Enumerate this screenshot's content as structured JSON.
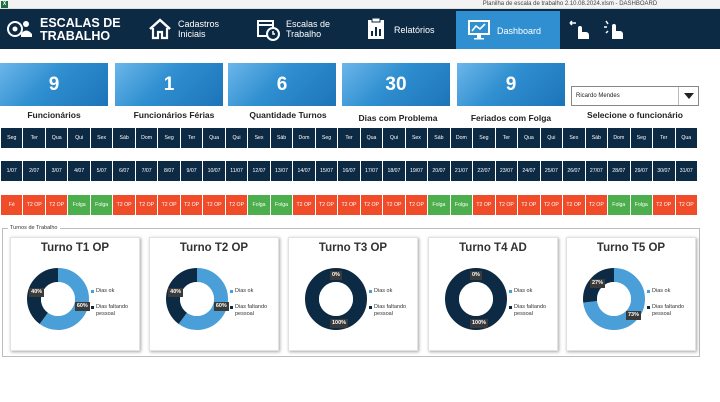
{
  "window": {
    "title": "Planilha de escala de trabalho 2.10.08.2024.xlsm - DASHBOARD",
    "app_icon": "X"
  },
  "nav": {
    "logo_line1": "ESCALAS DE",
    "logo_line2": "TRABALHO",
    "cadastros_line1": "Cadastros",
    "cadastros_line2": "Iniciais",
    "escalas_line1": "Escalas de",
    "escalas_line2": "Trabalho",
    "relatorios": "Relatórios",
    "dashboard": "Dashboard"
  },
  "kpis": [
    {
      "value": "9",
      "label": "Funcionários"
    },
    {
      "value": "1",
      "label": "Funcionários Férias"
    },
    {
      "value": "6",
      "label": "Quantidade Turnos"
    },
    {
      "value": "30",
      "label": "Dias com Problema"
    },
    {
      "value": "9",
      "label": "Feriados com Folga"
    }
  ],
  "employee_select": {
    "value": "Ricardo Mendes",
    "label": "Selecione o funcionário"
  },
  "calendar": {
    "days": [
      "Seg",
      "Ter",
      "Qua",
      "Qui",
      "Sex",
      "Sáb",
      "Dom",
      "Seg",
      "Ter",
      "Qua",
      "Qui",
      "Sex",
      "Sáb",
      "Dom",
      "Seg",
      "Ter",
      "Qua",
      "Qui",
      "Sex",
      "Sáb",
      "Dom",
      "Seg",
      "Ter",
      "Qua",
      "Qui",
      "Sex",
      "Sáb",
      "Dom",
      "Seg",
      "Ter",
      "Qua"
    ],
    "dates": [
      "1/07",
      "2/07",
      "3/07",
      "4/07",
      "5/07",
      "6/07",
      "7/07",
      "8/07",
      "9/07",
      "10/07",
      "11/07",
      "12/07",
      "13/07",
      "14/07",
      "15/07",
      "16/07",
      "17/07",
      "18/07",
      "19/07",
      "20/07",
      "21/07",
      "22/07",
      "23/07",
      "24/07",
      "25/07",
      "26/07",
      "27/07",
      "28/07",
      "29/07",
      "30/07",
      "31/07"
    ],
    "shifts": [
      {
        "text": "Fé",
        "c": "red"
      },
      {
        "text": "T2 OP",
        "c": "red"
      },
      {
        "text": "T2 OP",
        "c": "red"
      },
      {
        "text": "Folga",
        "c": "green"
      },
      {
        "text": "Folga",
        "c": "green"
      },
      {
        "text": "T2 OP",
        "c": "red"
      },
      {
        "text": "T2 OP",
        "c": "red"
      },
      {
        "text": "T2 OP",
        "c": "red"
      },
      {
        "text": "T2 OP",
        "c": "red"
      },
      {
        "text": "T2 OP",
        "c": "red"
      },
      {
        "text": "T2 OP",
        "c": "red"
      },
      {
        "text": "Folga",
        "c": "green"
      },
      {
        "text": "Folga",
        "c": "green"
      },
      {
        "text": "T2 OP",
        "c": "red"
      },
      {
        "text": "T2 OP",
        "c": "red"
      },
      {
        "text": "T2 OP",
        "c": "red"
      },
      {
        "text": "T2 OP",
        "c": "red"
      },
      {
        "text": "T2 OP",
        "c": "red"
      },
      {
        "text": "T2 OP",
        "c": "red"
      },
      {
        "text": "Folga",
        "c": "green"
      },
      {
        "text": "Folga",
        "c": "green"
      },
      {
        "text": "T2 OP",
        "c": "red"
      },
      {
        "text": "T2 OP",
        "c": "red"
      },
      {
        "text": "T2 OP",
        "c": "red"
      },
      {
        "text": "T2 OP",
        "c": "red"
      },
      {
        "text": "T2 OP",
        "c": "red"
      },
      {
        "text": "T2 OP",
        "c": "red"
      },
      {
        "text": "Folga",
        "c": "green"
      },
      {
        "text": "Folga",
        "c": "green"
      },
      {
        "text": "T2 OP",
        "c": "red"
      },
      {
        "text": "T2 OP",
        "c": "red"
      }
    ]
  },
  "turnos_section_label": "Turnos de Trabalho",
  "colors": {
    "dias_ok": "#4a9fd8",
    "dias_faltando": "#0d2a44",
    "red": "#f04c2a",
    "green": "#4cae4c"
  },
  "chart_data": [
    {
      "type": "pie",
      "title": "Turno T1 OP",
      "categories": [
        "Dias ok",
        "Dias faltando pessoal"
      ],
      "values": [
        60,
        40
      ],
      "labels": [
        "60%",
        "40%"
      ]
    },
    {
      "type": "pie",
      "title": "Turno T2 OP",
      "categories": [
        "Dias ok",
        "Dias faltando pessoal"
      ],
      "values": [
        60,
        40
      ],
      "labels": [
        "60%",
        "40%"
      ]
    },
    {
      "type": "pie",
      "title": "Turno T3 OP",
      "categories": [
        "Dias ok",
        "Dias faltando pessoal"
      ],
      "values": [
        0,
        100
      ],
      "labels": [
        "0%",
        "100%"
      ]
    },
    {
      "type": "pie",
      "title": "Turno T4 AD",
      "categories": [
        "Dias ok",
        "Dias faltando pessoal"
      ],
      "values": [
        0,
        100
      ],
      "labels": [
        "0%",
        "100%"
      ]
    },
    {
      "type": "pie",
      "title": "Turno T5 OP",
      "categories": [
        "Dias ok",
        "Dias faltando pessoal"
      ],
      "values": [
        73,
        27
      ],
      "labels": [
        "73%",
        "27%"
      ]
    }
  ],
  "legend": {
    "ok": "Dias ok",
    "faltando_line1": "Dias faltando",
    "faltando_line2": "pessoal"
  }
}
